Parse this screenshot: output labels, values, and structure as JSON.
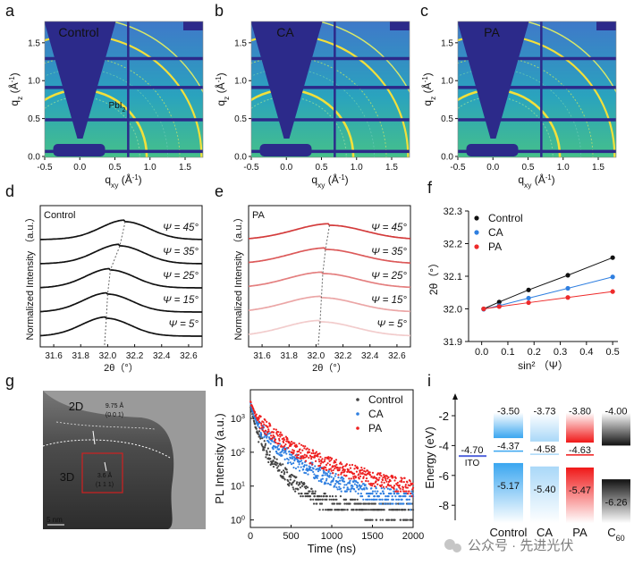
{
  "panel_letters": [
    "a",
    "b",
    "c",
    "d",
    "e",
    "f",
    "g",
    "h",
    "i"
  ],
  "giwaxs": {
    "panels": [
      {
        "label": "Control",
        "annotation": "PbI",
        "annotation_sub": "2"
      },
      {
        "label": "CA"
      },
      {
        "label": "PA"
      }
    ],
    "xlabel": {
      "main": "q",
      "sub": "xy",
      "unit": " (Å",
      "sup": "-1",
      "close": ")"
    },
    "ylabel": {
      "main": "q",
      "sub": "z",
      "unit": " (Å",
      "sup": "-1",
      "close": ")"
    },
    "xticks": [
      "-0.5",
      "0.0",
      "0.5",
      "1.0",
      "1.5"
    ],
    "yticks": [
      "0.0",
      "0.5",
      "1.0",
      "1.5"
    ],
    "colors": {
      "background": "#2a9bc4",
      "shadow": "#2c2a8a",
      "ring": "#f3e03a"
    }
  },
  "tem": {
    "labels": [
      "2D",
      "3D"
    ],
    "spacing_2d": "9.75 Å",
    "plane_2d": "(0 0 1)",
    "spacing_3d": "3.6 Å",
    "plane_3d": "(1 1 1)",
    "scale_bar": "5 nm"
  },
  "chart_data": [
    {
      "id": "d",
      "type": "line",
      "title": "Control",
      "xlabel": "2θ（°）",
      "ylabel": "Normalized Intensity （a.u.）",
      "xlim": [
        31.5,
        32.7
      ],
      "xticks": [
        "31.6",
        "31.8",
        "32.0",
        "32.2",
        "32.4",
        "32.6"
      ],
      "series": [
        {
          "name": "Ψ = 45°",
          "peak": 32.13,
          "color": "#111111"
        },
        {
          "name": "Ψ = 35°",
          "peak": 32.09,
          "color": "#111111"
        },
        {
          "name": "Ψ = 25°",
          "peak": 32.02,
          "color": "#111111"
        },
        {
          "name": "Ψ = 15°",
          "peak": 32.0,
          "color": "#111111"
        },
        {
          "name": "Ψ = 5°",
          "peak": 31.99,
          "color": "#111111"
        }
      ]
    },
    {
      "id": "e",
      "type": "line",
      "title": "PA",
      "xlabel": "2θ（°）",
      "ylabel": "Normalized Intensity （a.u.）",
      "xlim": [
        31.5,
        32.7
      ],
      "xticks": [
        "31.6",
        "31.8",
        "32.0",
        "32.2",
        "32.4",
        "32.6"
      ],
      "series": [
        {
          "name": "Ψ = 45°",
          "peak": 32.1,
          "color": "#d33b3b"
        },
        {
          "name": "Ψ = 35°",
          "peak": 32.07,
          "color": "#dc5a5a"
        },
        {
          "name": "Ψ = 25°",
          "peak": 32.05,
          "color": "#e47f7f"
        },
        {
          "name": "Ψ = 15°",
          "peak": 32.04,
          "color": "#eba6a6"
        },
        {
          "name": "Ψ = 5°",
          "peak": 32.03,
          "color": "#f2cccc"
        }
      ]
    },
    {
      "id": "f",
      "type": "scatter",
      "xlabel": "sin² （Ψ）",
      "ylabel": "2θ（°）",
      "xlim": [
        -0.05,
        0.52
      ],
      "ylim": [
        31.9,
        32.3
      ],
      "xticks": [
        "0.0",
        "0.1",
        "0.2",
        "0.3",
        "0.4",
        "0.5"
      ],
      "yticks": [
        "31.9",
        "32.0",
        "32.1",
        "32.2",
        "32.3"
      ],
      "x": [
        0.0076,
        0.067,
        0.179,
        0.329,
        0.5
      ],
      "legend": "top-left",
      "series": [
        {
          "name": "Control",
          "color": "#111111",
          "values": [
            32.0,
            32.021,
            32.058,
            32.103,
            32.157
          ]
        },
        {
          "name": "CA",
          "color": "#2f7fe0",
          "values": [
            31.999,
            32.01,
            32.033,
            32.063,
            32.098
          ]
        },
        {
          "name": "PA",
          "color": "#ee2a2a",
          "values": [
            32.0,
            32.007,
            32.019,
            32.035,
            32.053
          ]
        }
      ]
    },
    {
      "id": "h",
      "type": "scatter",
      "xlabel": "Time (ns)",
      "ylabel": "PL Intensity (a.u.)",
      "xlim": [
        0,
        2000
      ],
      "ylim": [
        0.6,
        7000
      ],
      "yscale": "log",
      "xticks": [
        "0",
        "500",
        "1000",
        "1500",
        "2000"
      ],
      "yticks": [
        {
          "base": "10",
          "exp": "0"
        },
        {
          "base": "10",
          "exp": "1"
        },
        {
          "base": "10",
          "exp": "2"
        },
        {
          "base": "10",
          "exp": "3"
        }
      ],
      "legend": "top-right",
      "series": [
        {
          "name": "Control",
          "color": "#444444",
          "t": [
            0,
            50,
            100,
            250,
            500,
            750,
            1000,
            1500,
            2000
          ],
          "values": [
            2500,
            700,
            300,
            60,
            15,
            5,
            3,
            2,
            2
          ]
        },
        {
          "name": "CA",
          "color": "#2f7fe0",
          "t": [
            0,
            50,
            100,
            250,
            500,
            1000,
            1500,
            2000
          ],
          "values": [
            2800,
            1000,
            600,
            215,
            63,
            15,
            6,
            4
          ]
        },
        {
          "name": "PA",
          "color": "#ee2020",
          "t": [
            0,
            50,
            100,
            250,
            500,
            1000,
            1500,
            2000
          ],
          "values": [
            3200,
            1500,
            900,
            400,
            140,
            40,
            17,
            9
          ]
        }
      ]
    },
    {
      "id": "i",
      "type": "bar",
      "ylabel": "Energy (eV)",
      "ylim": [
        -9,
        -0.5
      ],
      "yticks": [
        "-2",
        "-4",
        "-6",
        "-8"
      ],
      "ito": {
        "label": "ITO",
        "value": "-4.70",
        "color": "#5566dd"
      },
      "categories": [
        {
          "name": "Control",
          "cb": "-3.50",
          "mid": "-4.37",
          "vb": "-5.17",
          "color": "#3aa6f0"
        },
        {
          "name": "CA",
          "cb": "-3.73",
          "mid": "-4.58",
          "vb": "-5.40",
          "color": "#a9d8f8"
        },
        {
          "name": "PA",
          "cb": "-3.80",
          "mid": "-4.63",
          "vb": "-5.47",
          "color": "#f01818"
        },
        {
          "name": "C",
          "name_sub": "60",
          "cb": "-4.00",
          "vb": "-6.26",
          "color": "#111111"
        }
      ]
    }
  ],
  "watermark": "公众号 · 先进光伏"
}
